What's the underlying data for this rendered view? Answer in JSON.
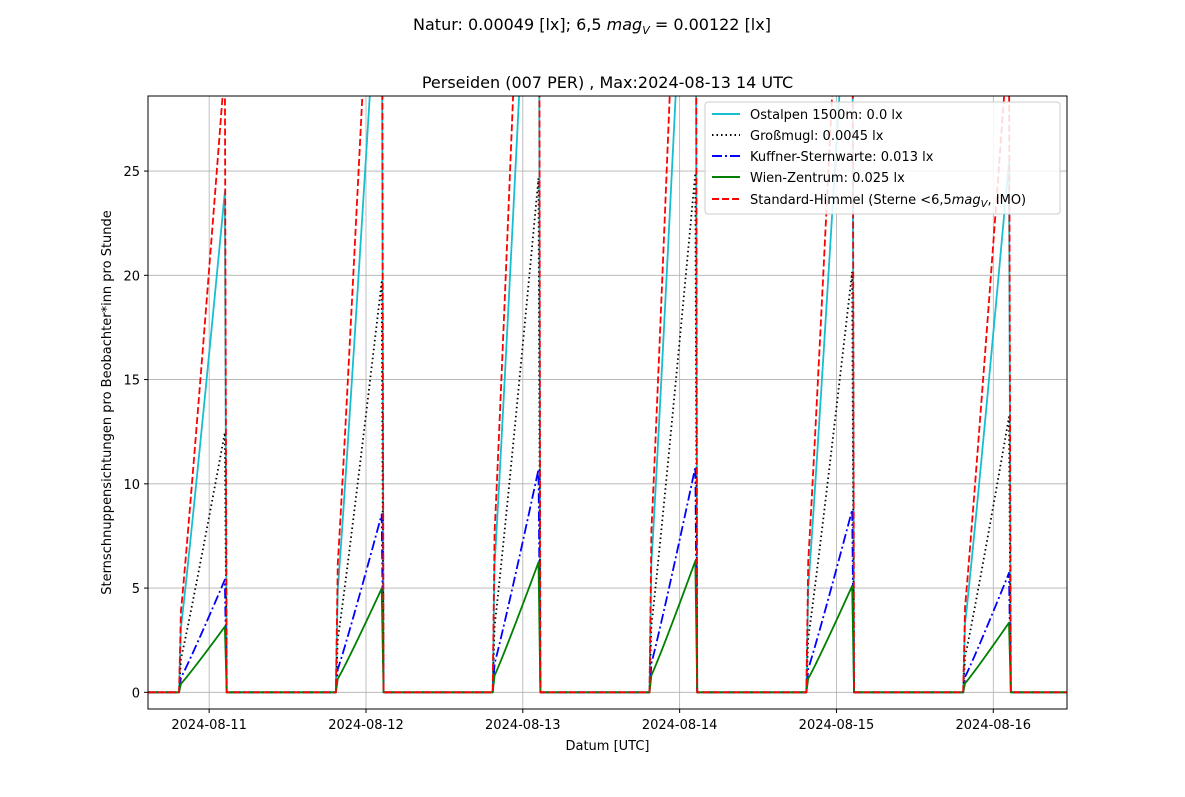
{
  "chart_data": {
    "type": "line",
    "suptitle": "Natur: 0.00049 [lx]; 6,5 mag_V = 0.00122 [lx]",
    "suptitle_parts": {
      "before": "Natur: 0.00049 [lx]; 6,5 ",
      "mag": "mag",
      "sub": "V",
      "after": " = 0.00122 [lx]"
    },
    "title": "Perseiden (007 PER) , Max:2024-08-13 14 UTC",
    "xlabel": "Datum [UTC]",
    "ylabel": "Sternschnuppensichtungen pro Beobachter*inn pro Stunde",
    "xlim": [
      10.61,
      16.47
    ],
    "ylim": [
      -0.8,
      28.6
    ],
    "x_unit": "day of August 2024 (UTC)",
    "x_ticks": [
      {
        "value": 11,
        "label": "2024-08-11"
      },
      {
        "value": 12,
        "label": "2024-08-12"
      },
      {
        "value": 13,
        "label": "2024-08-13"
      },
      {
        "value": 14,
        "label": "2024-08-14"
      },
      {
        "value": 15,
        "label": "2024-08-15"
      },
      {
        "value": 16,
        "label": "2024-08-16"
      }
    ],
    "y_ticks": [
      {
        "value": 0,
        "label": "0"
      },
      {
        "value": 5,
        "label": "5"
      },
      {
        "value": 10,
        "label": "10"
      },
      {
        "value": 15,
        "label": "15"
      },
      {
        "value": 20,
        "label": "20"
      },
      {
        "value": 25,
        "label": "25"
      }
    ],
    "grid": true,
    "legend_position": "top-right",
    "nights": [
      {
        "start": 10.82,
        "end": 11.1
      },
      {
        "start": 11.82,
        "end": 12.1
      },
      {
        "start": 12.82,
        "end": 13.1
      },
      {
        "start": 13.82,
        "end": 14.1
      },
      {
        "start": 14.82,
        "end": 15.1
      },
      {
        "start": 15.82,
        "end": 16.1
      }
    ],
    "night_peak_factors": [
      0.5,
      0.79,
      0.99,
      1.0,
      0.81,
      0.53
    ],
    "series": [
      {
        "name": "Ostalpen 1500m: 0.0 lx",
        "color": "#17becf",
        "dash": "solid",
        "scale": 48.0
      },
      {
        "name": "Großmugl: 0.0045 lx",
        "color": "#000000",
        "dash": "dotted",
        "scale": 24.9
      },
      {
        "name": "Kuffner-Sternwarte: 0.013 lx",
        "color": "#0000ff",
        "dash": "dashdot",
        "scale": 10.8
      },
      {
        "name": "Wien-Zentrum: 0.025 lx",
        "color": "#008000",
        "dash": "solid",
        "scale": 6.3
      },
      {
        "name": "Standard-Himmel (Sterne  < 6,5 mag_V, IMO)",
        "color": "#ff0000",
        "dash": "dashed",
        "scale": 60.0,
        "name_parts": {
          "before": "Standard-Himmel (Sterne  <6,5",
          "mag": "mag",
          "sub": "V",
          "after": ", IMO)"
        }
      }
    ]
  }
}
